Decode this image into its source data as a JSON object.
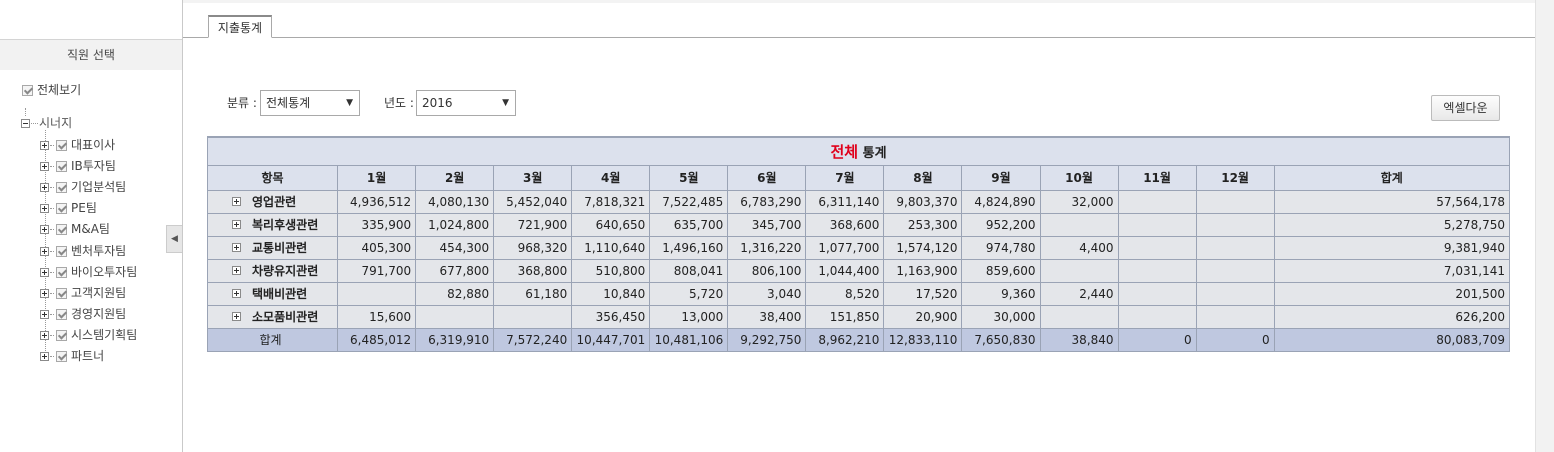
{
  "sidebar": {
    "header": "직원 선택",
    "show_all_label": "전체보기",
    "root_label": "시너지",
    "collapse_glyph": "◀",
    "teams": [
      "대표이사",
      "IB투자팀",
      "기업분석팀",
      "PE팀",
      "M&A팀",
      "벤처투자팀",
      "바이오투자팀",
      "고객지원팀",
      "경영지원팀",
      "시스템기획팀",
      "파트너"
    ]
  },
  "tabs": [
    {
      "label": "지출통계",
      "active": true
    }
  ],
  "filters": {
    "category_label": "분류 :",
    "category_value": "전체통계",
    "year_label": "년도 :",
    "year_value": "2016",
    "dropdown_glyph": "▼"
  },
  "toolbar": {
    "excel_download_label": "엑셀다운"
  },
  "table": {
    "title_highlight": "전체",
    "title_rest": "통계",
    "columns": [
      "항목",
      "1월",
      "2월",
      "3월",
      "4월",
      "5월",
      "6월",
      "7월",
      "8월",
      "9월",
      "10월",
      "11월",
      "12월",
      "합계"
    ],
    "rows": [
      {
        "label": "영업관련",
        "values": [
          "4,936,512",
          "4,080,130",
          "5,452,040",
          "7,818,321",
          "7,522,485",
          "6,783,290",
          "6,311,140",
          "9,803,370",
          "4,824,890",
          "32,000",
          "",
          "",
          "57,564,178"
        ]
      },
      {
        "label": "복리후생관련",
        "values": [
          "335,900",
          "1,024,800",
          "721,900",
          "640,650",
          "635,700",
          "345,700",
          "368,600",
          "253,300",
          "952,200",
          "",
          "",
          "",
          "5,278,750"
        ]
      },
      {
        "label": "교통비관련",
        "values": [
          "405,300",
          "454,300",
          "968,320",
          "1,110,640",
          "1,496,160",
          "1,316,220",
          "1,077,700",
          "1,574,120",
          "974,780",
          "4,400",
          "",
          "",
          "9,381,940"
        ]
      },
      {
        "label": "차량유지관련",
        "values": [
          "791,700",
          "677,800",
          "368,800",
          "510,800",
          "808,041",
          "806,100",
          "1,044,400",
          "1,163,900",
          "859,600",
          "",
          "",
          "",
          "7,031,141"
        ]
      },
      {
        "label": "택배비관련",
        "values": [
          "",
          "82,880",
          "61,180",
          "10,840",
          "5,720",
          "3,040",
          "8,520",
          "17,520",
          "9,360",
          "2,440",
          "",
          "",
          "201,500"
        ]
      },
      {
        "label": "소모품비관련",
        "values": [
          "15,600",
          "",
          "",
          "356,450",
          "13,000",
          "38,400",
          "151,850",
          "20,900",
          "30,000",
          "",
          "",
          "",
          "626,200"
        ]
      }
    ],
    "total": {
      "label": "합계",
      "values": [
        "6,485,012",
        "6,319,910",
        "7,572,240",
        "10,447,701",
        "10,481,106",
        "9,292,750",
        "8,962,210",
        "12,833,110",
        "7,650,830",
        "38,840",
        "0",
        "0",
        "80,083,709"
      ]
    }
  }
}
